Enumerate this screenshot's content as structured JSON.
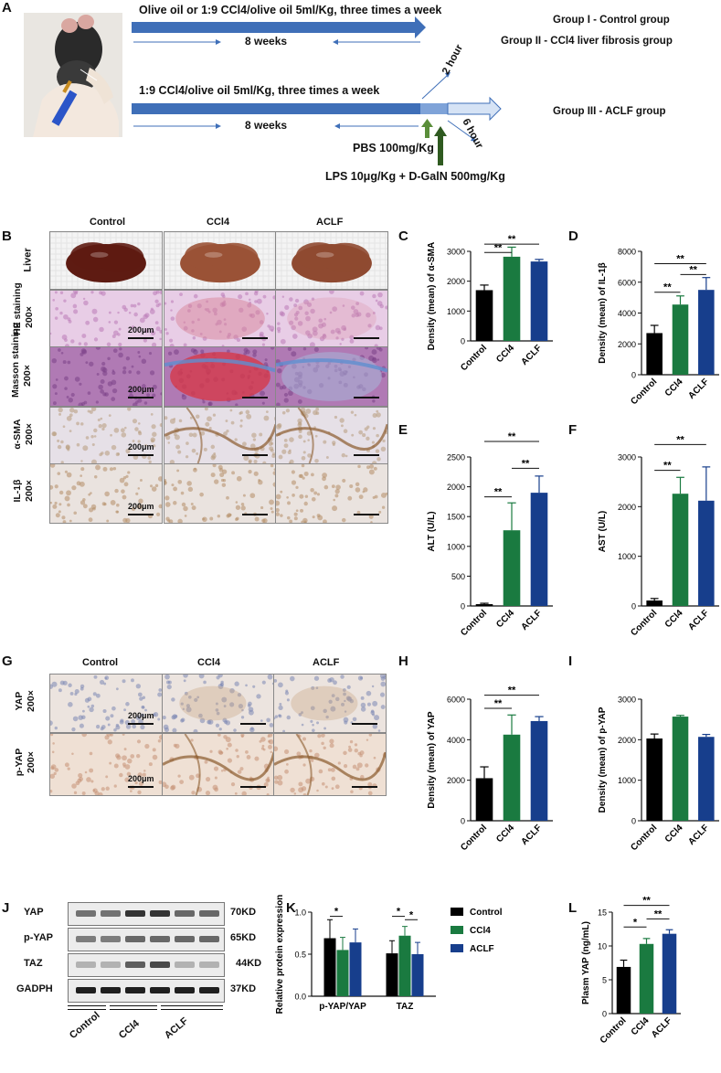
{
  "panel_letters": [
    "A",
    "B",
    "C",
    "D",
    "E",
    "F",
    "G",
    "H",
    "I",
    "J",
    "K",
    "L"
  ],
  "panelA": {
    "line1": "Olive oil or 1:9 CCl4/olive oil 5ml/Kg, three times a week",
    "weeks1": "8 weeks",
    "group1": "Group I - Control group",
    "group2": "Group II - CCl4 liver fibrosis group",
    "line2": "1:9 CCl4/olive oil 5ml/Kg, three times a week",
    "weeks2": "8 weeks",
    "hour2": "2 hour",
    "hour6": "6 hour",
    "group3": "Group III - ACLF group",
    "pbs": "PBS 100mg/Kg",
    "lps": "LPS 10μg/Kg + D-GalN 500mg/Kg",
    "colors": {
      "arrow_dark": "#3f6fb8",
      "arrow_light": "#a9c4ea",
      "green_arrow": "#5a8e3a",
      "dark_green": "#2f5a20"
    }
  },
  "panelB": {
    "columns": [
      "Control",
      "CCl4",
      "ACLF"
    ],
    "rows": [
      "Liver",
      "HE staining 200×",
      "Masson staining 200×",
      "α-SMA 200×",
      "IL-1β 200×"
    ],
    "scale": "200μm"
  },
  "panelG": {
    "columns": [
      "Control",
      "CCl4",
      "ACLF"
    ],
    "rows": [
      "YAP 200×",
      "p-YAP 200×"
    ],
    "scale": "200μm"
  },
  "panelJ": {
    "rows": [
      {
        "name": "YAP",
        "kd": "70KD"
      },
      {
        "name": "p-YAP",
        "kd": "65KD"
      },
      {
        "name": "TAZ",
        "kd": "44KD"
      },
      {
        "name": "GADPH",
        "kd": "37KD"
      }
    ],
    "groups": [
      "Control",
      "CCl4",
      "ACLF"
    ]
  },
  "colors": {
    "control": "#000000",
    "ccl4": "#1a7a40",
    "aclf": "#173e8c"
  },
  "chart_data": [
    {
      "id": "C",
      "type": "bar",
      "categories": [
        "Control",
        "CCl4",
        "ACLF"
      ],
      "values": [
        1700,
        2820,
        2660
      ],
      "errors": [
        170,
        320,
        70
      ],
      "ylabel": "Density (mean) of α-SMA",
      "ylim": [
        0,
        3000
      ],
      "yticks": [
        0,
        1000,
        2000,
        3000
      ],
      "sig": [
        {
          "from": 0,
          "to": 1,
          "text": "**",
          "y": 2960
        },
        {
          "from": 0,
          "to": 2,
          "text": "**",
          "y": 3240
        }
      ]
    },
    {
      "id": "D",
      "type": "bar",
      "categories": [
        "Control",
        "CCl4",
        "ACLF"
      ],
      "values": [
        2700,
        4550,
        5500
      ],
      "errors": [
        500,
        560,
        800
      ],
      "ylabel": "Density (mean) of IL-1β",
      "ylim": [
        0,
        8000
      ],
      "yticks": [
        0,
        2000,
        4000,
        6000,
        8000
      ],
      "sig": [
        {
          "from": 0,
          "to": 1,
          "text": "**",
          "y": 5350
        },
        {
          "from": 1,
          "to": 2,
          "text": "**",
          "y": 6500
        },
        {
          "from": 0,
          "to": 2,
          "text": "**",
          "y": 7200
        }
      ]
    },
    {
      "id": "E",
      "type": "bar",
      "categories": [
        "Control",
        "CCl4",
        "ACLF"
      ],
      "values": [
        30,
        1270,
        1900
      ],
      "errors": [
        15,
        460,
        280
      ],
      "ylabel": "ALT (U/L)",
      "ylim": [
        0,
        2500
      ],
      "yticks": [
        0,
        500,
        1000,
        1500,
        2000,
        2500
      ],
      "sig": [
        {
          "from": 0,
          "to": 1,
          "text": "**",
          "y": 1830
        },
        {
          "from": 1,
          "to": 2,
          "text": "**",
          "y": 2310
        },
        {
          "from": 0,
          "to": 2,
          "text": "**",
          "y": 2760
        }
      ]
    },
    {
      "id": "F",
      "type": "bar",
      "categories": [
        "Control",
        "CCl4",
        "ACLF"
      ],
      "values": [
        110,
        2260,
        2120
      ],
      "errors": [
        40,
        330,
        680
      ],
      "ylabel": "AST (U/L)",
      "ylim": [
        0,
        3000
      ],
      "yticks": [
        0,
        1000,
        2000,
        3000
      ],
      "sig": [
        {
          "from": 0,
          "to": 1,
          "text": "**",
          "y": 2730
        },
        {
          "from": 0,
          "to": 2,
          "text": "**",
          "y": 3250
        }
      ]
    },
    {
      "id": "H",
      "type": "bar",
      "categories": [
        "Control",
        "CCl4",
        "ACLF"
      ],
      "values": [
        2100,
        4250,
        4920
      ],
      "errors": [
        560,
        970,
        220
      ],
      "ylabel": "Density (mean) of YAP",
      "ylim": [
        0,
        6000
      ],
      "yticks": [
        0,
        2000,
        4000,
        6000
      ],
      "sig": [
        {
          "from": 0,
          "to": 1,
          "text": "**",
          "y": 5550
        },
        {
          "from": 0,
          "to": 2,
          "text": "**",
          "y": 6200
        }
      ]
    },
    {
      "id": "I",
      "type": "bar",
      "categories": [
        "Control",
        "CCl4",
        "ACLF"
      ],
      "values": [
        2030,
        2570,
        2070
      ],
      "errors": [
        110,
        30,
        60
      ],
      "ylabel": "Density (mean) of p-YAP",
      "ylim": [
        0,
        3000
      ],
      "yticks": [
        0,
        1000,
        2000,
        3000
      ],
      "sig": []
    },
    {
      "id": "K",
      "type": "bar",
      "groups": [
        "p-YAP/YAP",
        "TAZ"
      ],
      "series": [
        {
          "name": "Control",
          "values": [
            0.69,
            0.51
          ],
          "errors": [
            0.22,
            0.15
          ]
        },
        {
          "name": "CCl4",
          "values": [
            0.55,
            0.72
          ],
          "errors": [
            0.15,
            0.11
          ]
        },
        {
          "name": "ACLF",
          "values": [
            0.64,
            0.5
          ],
          "errors": [
            0.16,
            0.14
          ]
        }
      ],
      "ylabel": "Relative protein expression",
      "ylim": [
        0,
        1.0
      ],
      "yticks": [
        0.0,
        0.5,
        1.0
      ],
      "sig": [
        {
          "group": 0,
          "from": 0,
          "to": 1,
          "text": "*",
          "y": 0.95
        },
        {
          "group": 1,
          "from": 0,
          "to": 1,
          "text": "*",
          "y": 0.95
        },
        {
          "group": 1,
          "from": 1,
          "to": 2,
          "text": "*",
          "y": 0.91
        }
      ]
    },
    {
      "id": "L",
      "type": "bar",
      "categories": [
        "Control",
        "CCl4",
        "ACLF"
      ],
      "values": [
        6.9,
        10.3,
        11.8
      ],
      "errors": [
        1.0,
        0.8,
        0.6
      ],
      "ylabel": "Plasm YAP (ng/mL)",
      "ylim": [
        0,
        15
      ],
      "yticks": [
        0,
        5,
        10,
        15
      ],
      "sig": [
        {
          "from": 0,
          "to": 1,
          "text": "*",
          "y": 12.8
        },
        {
          "from": 1,
          "to": 2,
          "text": "**",
          "y": 14.0
        },
        {
          "from": 0,
          "to": 2,
          "text": "**",
          "y": 16.0
        }
      ]
    }
  ]
}
